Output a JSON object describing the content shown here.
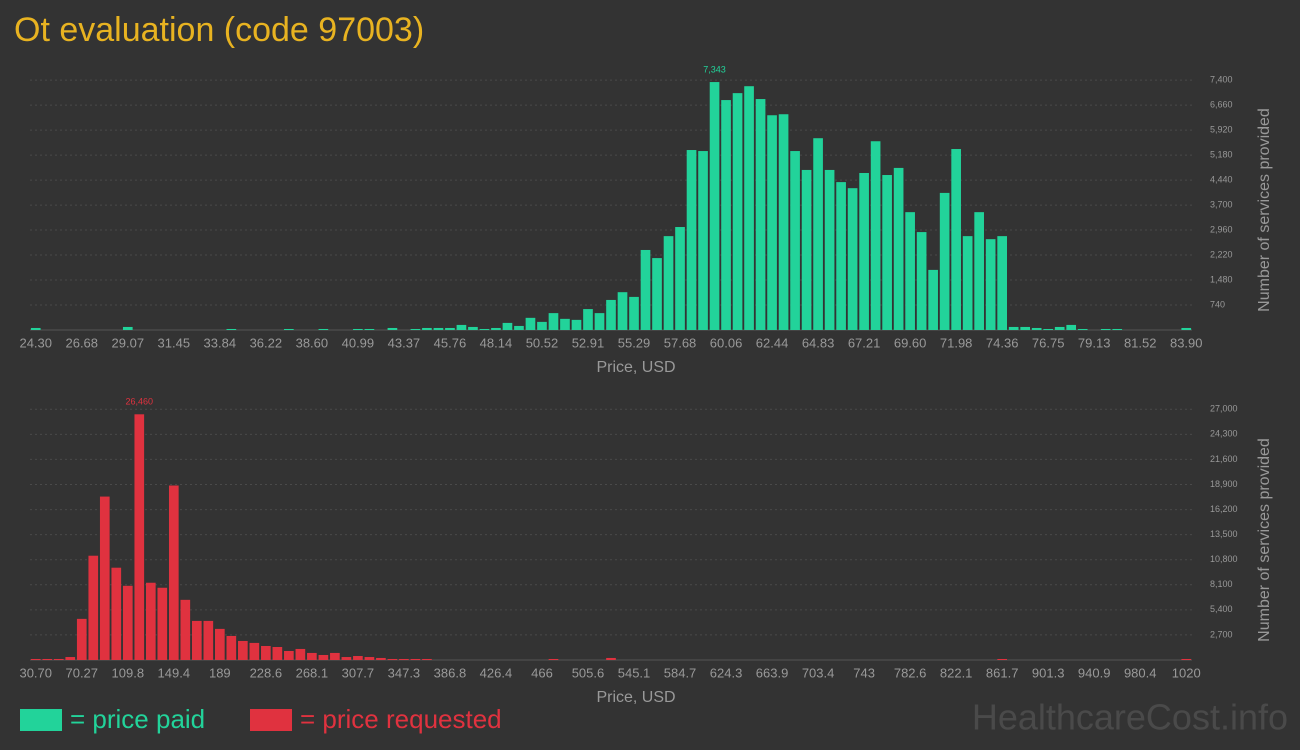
{
  "title": "Ot evaluation (code 97003)",
  "watermark": "HealthcareCost.info",
  "chart_data": [
    {
      "type": "bar",
      "x_label": "Price, USD",
      "y_label": "Number of services provided",
      "grid": true,
      "categories": [
        "24.30",
        null,
        null,
        null,
        "26.68",
        null,
        null,
        null,
        "29.07",
        null,
        null,
        null,
        "31.45",
        null,
        null,
        null,
        "33.84",
        null,
        null,
        null,
        "36.22",
        null,
        null,
        null,
        "38.60",
        null,
        null,
        null,
        "40.99",
        null,
        null,
        null,
        "43.37",
        null,
        null,
        null,
        "45.76",
        null,
        null,
        null,
        "48.14",
        null,
        null,
        null,
        "50.52",
        null,
        null,
        null,
        "52.91",
        null,
        null,
        null,
        "55.29",
        null,
        null,
        null,
        "57.68",
        null,
        null,
        null,
        "60.06",
        null,
        null,
        null,
        "62.44",
        null,
        null,
        null,
        "64.83",
        null,
        null,
        null,
        "67.21",
        null,
        null,
        null,
        "69.60",
        null,
        null,
        null,
        "71.98",
        null,
        null,
        null,
        "74.36",
        null,
        null,
        null,
        "76.75",
        null,
        null,
        null,
        "79.13",
        null,
        null,
        null,
        "81.52",
        null,
        null,
        null,
        "83.90"
      ],
      "series": [
        {
          "name": "= price paid",
          "color": "#22d39a",
          "values": [
            60,
            0,
            0,
            0,
            0,
            0,
            0,
            0,
            90,
            0,
            0,
            0,
            0,
            0,
            0,
            0,
            0,
            30,
            0,
            0,
            0,
            0,
            30,
            0,
            0,
            30,
            0,
            0,
            30,
            30,
            0,
            60,
            0,
            30,
            60,
            60,
            60,
            150,
            90,
            30,
            60,
            210,
            120,
            360,
            240,
            500,
            330,
            300,
            620,
            500,
            890,
            1120,
            980,
            2370,
            2130,
            2780,
            3050,
            5330,
            5300,
            7343,
            6810,
            7015,
            7220,
            6840,
            6360,
            6390,
            5300,
            4740,
            5680,
            4740,
            4380,
            4200,
            4650,
            5590,
            4590,
            4800,
            3490,
            2900,
            1780,
            4060,
            5360,
            2780,
            3490,
            2690,
            2780,
            90,
            90,
            60,
            30,
            90,
            150,
            30,
            0,
            30,
            30,
            0,
            0,
            0,
            0,
            0,
            60
          ],
          "value_labels": [
            null,
            null,
            null,
            null,
            null,
            null,
            null,
            null,
            null,
            null,
            null,
            null,
            null,
            null,
            null,
            null,
            null,
            null,
            null,
            null,
            null,
            null,
            null,
            null,
            null,
            null,
            null,
            null,
            null,
            null,
            null,
            null,
            null,
            null,
            null,
            null,
            null,
            null,
            null,
            null,
            null,
            null,
            null,
            null,
            null,
            null,
            null,
            null,
            null,
            null,
            null,
            null,
            null,
            null,
            null,
            null,
            null,
            null,
            null,
            "7,343",
            null,
            null,
            null,
            null,
            null,
            null,
            null,
            null,
            null,
            null,
            null,
            null,
            null,
            null,
            null,
            null,
            null,
            null,
            null,
            null,
            null,
            null,
            null,
            null,
            null,
            null,
            null,
            null,
            null,
            null,
            null,
            null,
            null,
            null,
            null,
            null,
            null,
            null,
            null,
            null,
            null
          ]
        }
      ],
      "ylim": [
        0,
        7700
      ],
      "yticks": [
        740,
        {
          "value": 1480,
          "label": "1,480"
        },
        {
          "value": 2220,
          "label": "2,220"
        },
        {
          "value": 2960,
          "label": "2,960"
        },
        {
          "value": 3700,
          "label": "3,700"
        },
        {
          "value": 4440,
          "label": "4,440"
        },
        {
          "value": 5180,
          "label": "5,180"
        },
        {
          "value": 5920,
          "label": "5,920"
        },
        {
          "value": 6660,
          "label": "6,660"
        },
        {
          "value": 7400,
          "label": "7,400"
        }
      ]
    },
    {
      "type": "bar",
      "x_label": "Price, USD",
      "y_label": "Number of services provided",
      "grid": true,
      "categories": [
        "30.70",
        null,
        null,
        null,
        "70.27",
        null,
        null,
        null,
        "109.8",
        null,
        null,
        null,
        "149.4",
        null,
        null,
        null,
        "189",
        null,
        null,
        null,
        "228.6",
        null,
        null,
        null,
        "268.1",
        null,
        null,
        null,
        "307.7",
        null,
        null,
        null,
        "347.3",
        null,
        null,
        null,
        "386.8",
        null,
        null,
        null,
        "426.4",
        null,
        null,
        null,
        "466",
        null,
        null,
        null,
        "505.6",
        null,
        null,
        null,
        "545.1",
        null,
        null,
        null,
        "584.7",
        null,
        null,
        null,
        "624.3",
        null,
        null,
        null,
        "663.9",
        null,
        null,
        null,
        "703.4",
        null,
        null,
        null,
        "743",
        null,
        null,
        null,
        "782.6",
        null,
        null,
        null,
        "822.1",
        null,
        null,
        null,
        "861.7",
        null,
        null,
        null,
        "901.3",
        null,
        null,
        null,
        "940.9",
        null,
        null,
        null,
        "980.4",
        null,
        null,
        null,
        "1020"
      ],
      "series": [
        {
          "name": "= price requested",
          "color": "#e0323f",
          "values": [
            110,
            110,
            110,
            320,
            4430,
            11230,
            17600,
            9940,
            7990,
            26460,
            8320,
            7780,
            18790,
            6480,
            4210,
            4210,
            3350,
            2590,
            2050,
            1840,
            1510,
            1400,
            970,
            1190,
            760,
            540,
            760,
            320,
            430,
            320,
            220,
            110,
            110,
            110,
            110,
            0,
            0,
            0,
            0,
            0,
            0,
            0,
            0,
            0,
            0,
            110,
            0,
            0,
            0,
            0,
            220,
            0,
            0,
            0,
            0,
            0,
            0,
            0,
            0,
            0,
            0,
            0,
            0,
            0,
            0,
            0,
            0,
            0,
            0,
            0,
            0,
            0,
            0,
            0,
            0,
            0,
            0,
            0,
            0,
            0,
            0,
            0,
            0,
            0,
            110,
            0,
            0,
            0,
            0,
            0,
            0,
            0,
            0,
            0,
            0,
            0,
            0,
            0,
            0,
            0,
            110
          ],
          "value_labels": [
            null,
            null,
            null,
            null,
            null,
            null,
            null,
            null,
            null,
            "26,460",
            null,
            null,
            null,
            null,
            null,
            null,
            null,
            null,
            null,
            null,
            null,
            null,
            null,
            null,
            null,
            null,
            null,
            null,
            null,
            null,
            null,
            null,
            null,
            null,
            null,
            null,
            null,
            null,
            null,
            null,
            null,
            null,
            null,
            null,
            null,
            null,
            null,
            null,
            null,
            null,
            null,
            null,
            null,
            null,
            null,
            null,
            null,
            null,
            null,
            null,
            null,
            null,
            null,
            null,
            null,
            null,
            null,
            null,
            null,
            null,
            null,
            null,
            null,
            null,
            null,
            null,
            null,
            null,
            null,
            null,
            null,
            null,
            null,
            null,
            null,
            null,
            null,
            null,
            null,
            null,
            null,
            null,
            null,
            null,
            null,
            null,
            null,
            null,
            null,
            null,
            null
          ]
        }
      ],
      "ylim": [
        0,
        28000
      ],
      "yticks": [
        {
          "value": 2700,
          "label": "2,700"
        },
        {
          "value": 5400,
          "label": "5,400"
        },
        {
          "value": 8100,
          "label": "8,100"
        },
        {
          "value": 10800,
          "label": "10,800"
        },
        {
          "value": 13500,
          "label": "13,500"
        },
        {
          "value": 16200,
          "label": "16,200"
        },
        {
          "value": 18900,
          "label": "18,900"
        },
        {
          "value": 21600,
          "label": "21,600"
        },
        {
          "value": 24300,
          "label": "24,300"
        },
        {
          "value": 27000,
          "label": "27,000"
        }
      ]
    }
  ]
}
